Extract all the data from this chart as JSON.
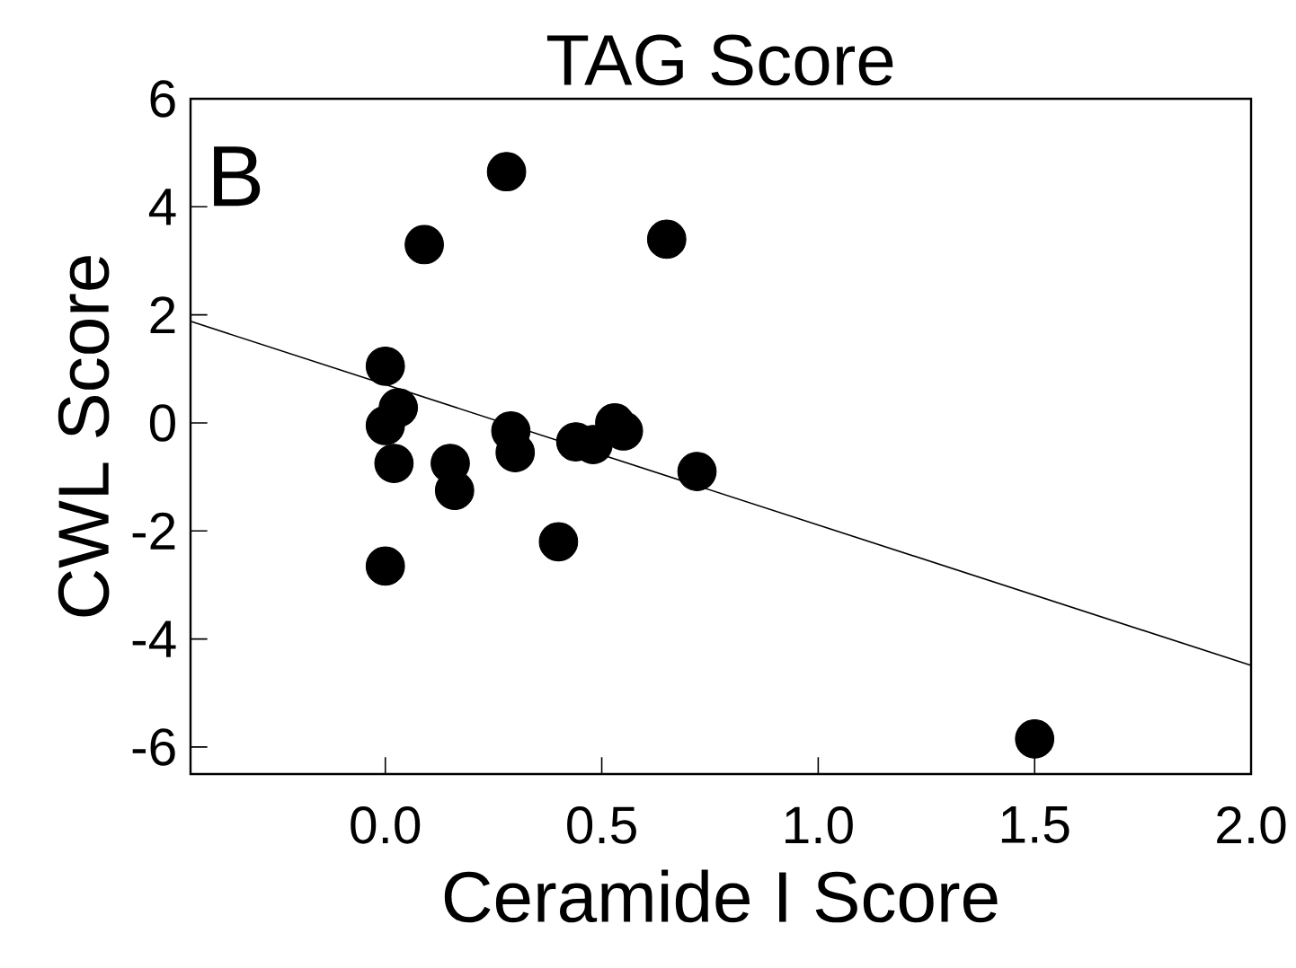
{
  "chart_data": {
    "type": "scatter",
    "title": "TAG Score",
    "xlabel": "Ceramide I Score",
    "ylabel": "CWL Score",
    "annotations": [
      "B"
    ],
    "xlim": [
      -0.45,
      2.0
    ],
    "ylim": [
      -6.5,
      6
    ],
    "xticks": [
      {
        "value": 0,
        "label": "0.0"
      },
      {
        "value": 0.5,
        "label": "0.5"
      },
      {
        "value": 1,
        "label": "1.0"
      },
      {
        "value": 1.5,
        "label": "1.5"
      },
      {
        "value": 2,
        "label": "2.0"
      }
    ],
    "yticks": [
      -6,
      -4,
      -2,
      0,
      2,
      4,
      6
    ],
    "grid": false,
    "series": [
      {
        "color": "#000000",
        "marker": "circle",
        "x": [
          0.28,
          0.09,
          0.65,
          0,
          0.03,
          0,
          0.02,
          0.15,
          0.16,
          0.29,
          0.3,
          0.44,
          0.48,
          0.53,
          0.55,
          0.72,
          0.4,
          0,
          1.5
        ],
        "values": [
          4.65,
          3.3,
          3.4,
          1.05,
          0.28,
          -0.05,
          -0.75,
          -0.75,
          -1.25,
          -0.15,
          -0.55,
          -0.35,
          -0.4,
          0.0,
          -0.15,
          -0.9,
          -2.2,
          -2.65,
          -5.85
        ]
      },
      {
        "type": "line",
        "color": "#000000",
        "marker": "none",
        "line_style": "solid",
        "x": [
          -0.45,
          2.0
        ],
        "values": [
          1.88,
          -4.49
        ]
      }
    ]
  }
}
